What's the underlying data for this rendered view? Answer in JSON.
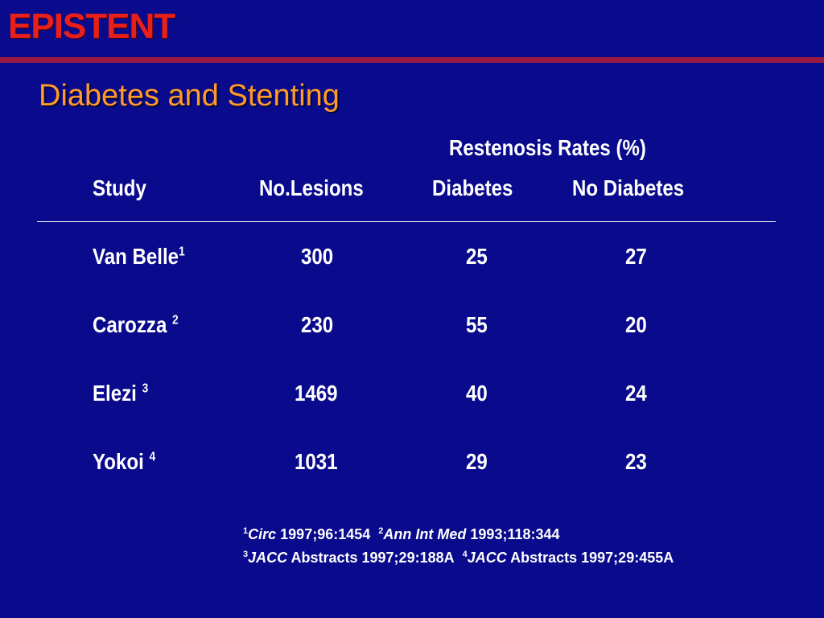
{
  "header": {
    "brand": "EPISTENT",
    "title": "Diabetes and Stenting"
  },
  "table": {
    "group_header": "Restenosis Rates (%)",
    "columns": [
      "Study",
      "No.Lesions",
      "Diabetes",
      "No Diabetes"
    ],
    "rows": [
      {
        "study": "Van Belle",
        "ref": "1",
        "lesions": "300",
        "diabetes": "25",
        "no_diabetes": "27"
      },
      {
        "study": "Carozza",
        "ref": "2",
        "lesions": "230",
        "diabetes": "55",
        "no_diabetes": "20"
      },
      {
        "study": "Elezi",
        "ref": "3",
        "lesions": "1469",
        "diabetes": "40",
        "no_diabetes": "24"
      },
      {
        "study": "Yokoi",
        "ref": "4",
        "lesions": "1031",
        "diabetes": "29",
        "no_diabetes": "23"
      }
    ]
  },
  "references": [
    {
      "num": "1",
      "journal": "Circ",
      "cite": "1997;96:1454"
    },
    {
      "num": "2",
      "journal": "Ann Int Med",
      "cite": "1993;118:344"
    },
    {
      "num": "3",
      "journal": "JACC",
      "cite": "Abstracts 1997;29:188A"
    },
    {
      "num": "4",
      "journal": "JACC",
      "cite": "Abstracts 1997;29:455A"
    }
  ],
  "colors": {
    "background": "#0a0a8c",
    "brand": "#e8201b",
    "title": "#ff9a2a",
    "rule": "#9a1840",
    "text": "#ffffff"
  }
}
